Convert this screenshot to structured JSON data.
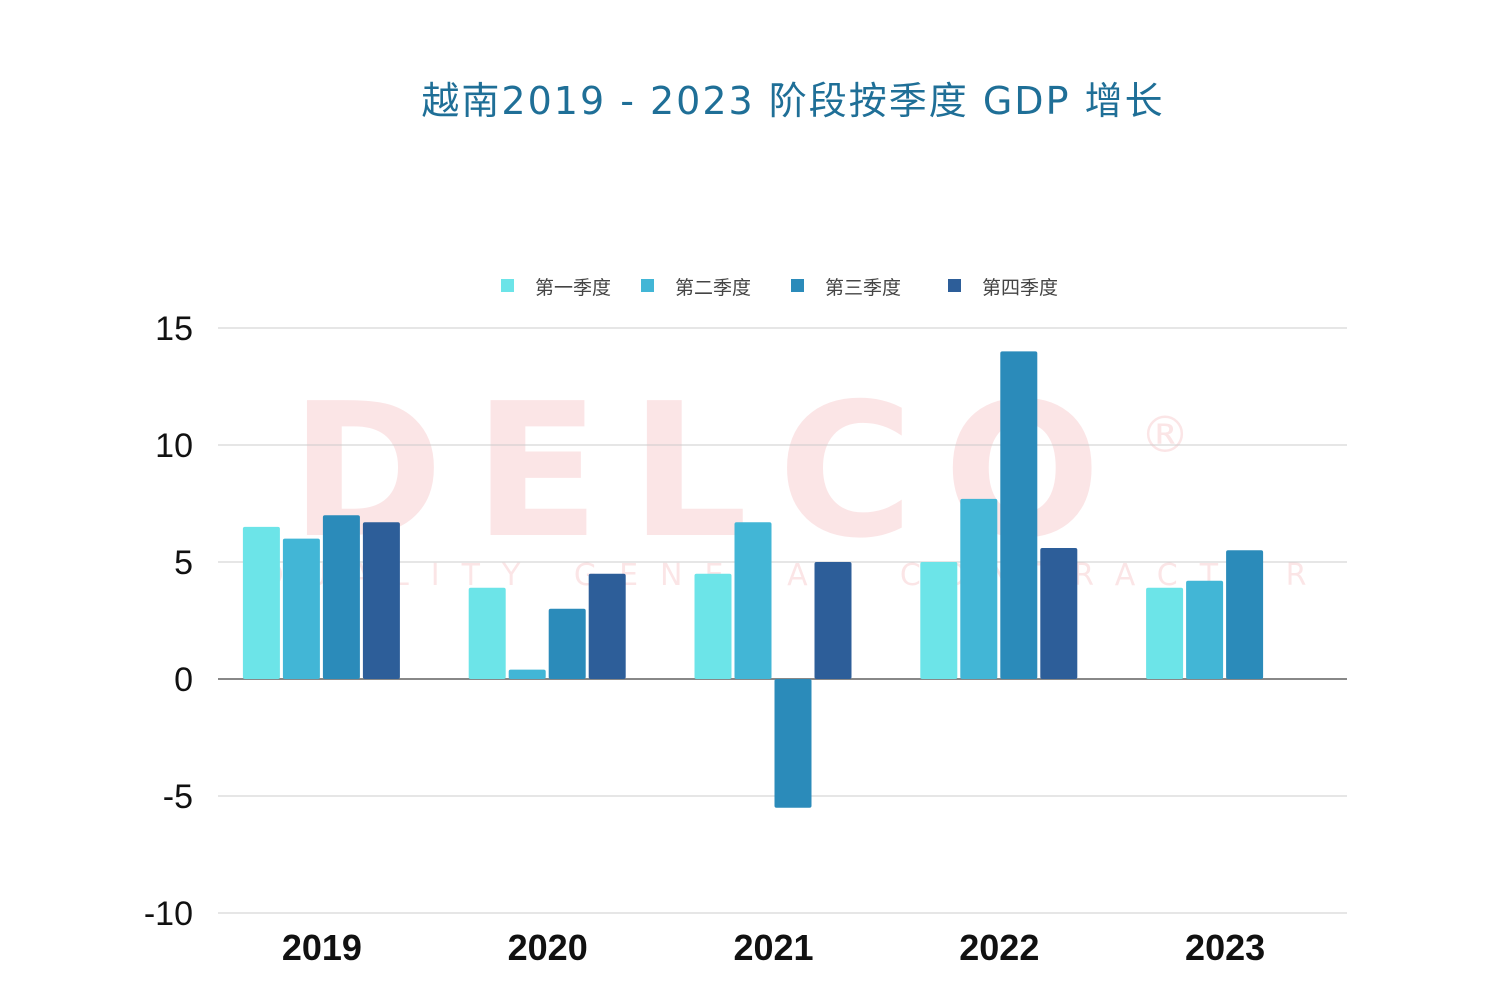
{
  "chart_data": {
    "type": "bar",
    "title": "越南2019 - 2023 阶段按季度 GDP 增长",
    "xlabel": "",
    "ylabel": "",
    "categories": [
      "2019",
      "2020",
      "2021",
      "2022",
      "2023"
    ],
    "series": [
      {
        "name": "第一季度",
        "color": "#6ce4e8",
        "values": [
          6.5,
          3.9,
          4.5,
          5.0,
          3.9
        ]
      },
      {
        "name": "第二季度",
        "color": "#42b6d6",
        "values": [
          6.0,
          0.4,
          6.7,
          7.7,
          4.2
        ]
      },
      {
        "name": "第三季度",
        "color": "#2b8bba",
        "values": [
          7.0,
          3.0,
          -5.5,
          14.0,
          5.5
        ]
      },
      {
        "name": "第四季度",
        "color": "#2d5e99",
        "values": [
          6.7,
          4.5,
          5.0,
          5.6,
          null
        ]
      }
    ],
    "ylim": [
      -10,
      15
    ],
    "yticks": [
      15,
      10,
      5,
      0,
      -5,
      -10
    ],
    "grid": true,
    "legend_position": "top",
    "watermark": {
      "brand": "DELCO",
      "symbol": "®",
      "tagline": "QUALITY GENERAL CONTRACTOR"
    }
  }
}
